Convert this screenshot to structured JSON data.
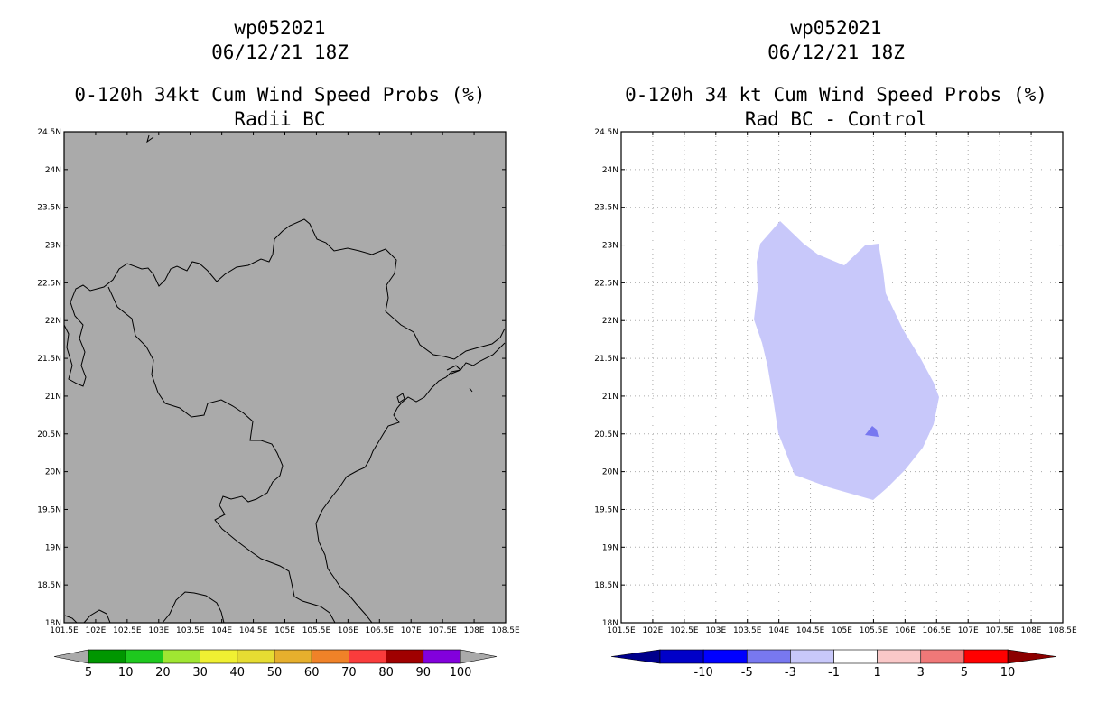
{
  "panels": [
    {
      "id": "left",
      "title_line1": "wp052021",
      "title_line2": "06/12/21 18Z",
      "title_line3": "0-120h 34kt Cum Wind Speed Probs (%)",
      "title_line4": "Radii BC",
      "background_color": "#aaaaaa"
    },
    {
      "id": "right",
      "title_line1": "wp052021",
      "title_line2": "06/12/21 18Z",
      "title_line3": "0-120h 34 kt Cum Wind Speed Probs (%)",
      "title_line4": "Rad BC - Control",
      "background_color": "#ffffff",
      "grid": true
    }
  ],
  "map": {
    "lon_ticks": [
      "101.5E",
      "102E",
      "102.5E",
      "103E",
      "103.5E",
      "104E",
      "104.5E",
      "105E",
      "105.5E",
      "106E",
      "106.5E",
      "107E",
      "107.5E",
      "108E",
      "108.5E"
    ],
    "lat_ticks": [
      "24.5N",
      "24N",
      "23.5N",
      "23N",
      "22.5N",
      "22N",
      "21.5N",
      "21N",
      "20.5N",
      "20N",
      "19.5N",
      "19N",
      "18.5N",
      "18N"
    ],
    "lon_range": [
      101.5,
      108.5
    ],
    "lat_range": [
      18,
      24.5
    ],
    "coastline_color": "#000000"
  },
  "colorbar_left": {
    "labels": [
      "5",
      "10",
      "20",
      "30",
      "40",
      "50",
      "60",
      "70",
      "80",
      "90",
      "100"
    ],
    "colors": [
      "#009600",
      "#1ec81e",
      "#a0e632",
      "#f0f032",
      "#e6dc32",
      "#e6af2d",
      "#f08228",
      "#fa3c3c",
      "#a00000",
      "#8200dc"
    ],
    "end_color": "#aaaaaa"
  },
  "colorbar_right": {
    "labels": [
      "-10",
      "-5",
      "-3",
      "-1",
      "1",
      "3",
      "5",
      "10"
    ],
    "colors": [
      "#0000c8",
      "#0000ff",
      "#7878f0",
      "#c8c8fa",
      "#ffffff",
      "#fac8c8",
      "#f07878",
      "#ff0000"
    ],
    "low_end_color": "#00008c",
    "high_end_color": "#8c0000"
  },
  "difference_field": {
    "large_region_color": "#c8c8fa",
    "small_region_color": "#7878f0"
  }
}
